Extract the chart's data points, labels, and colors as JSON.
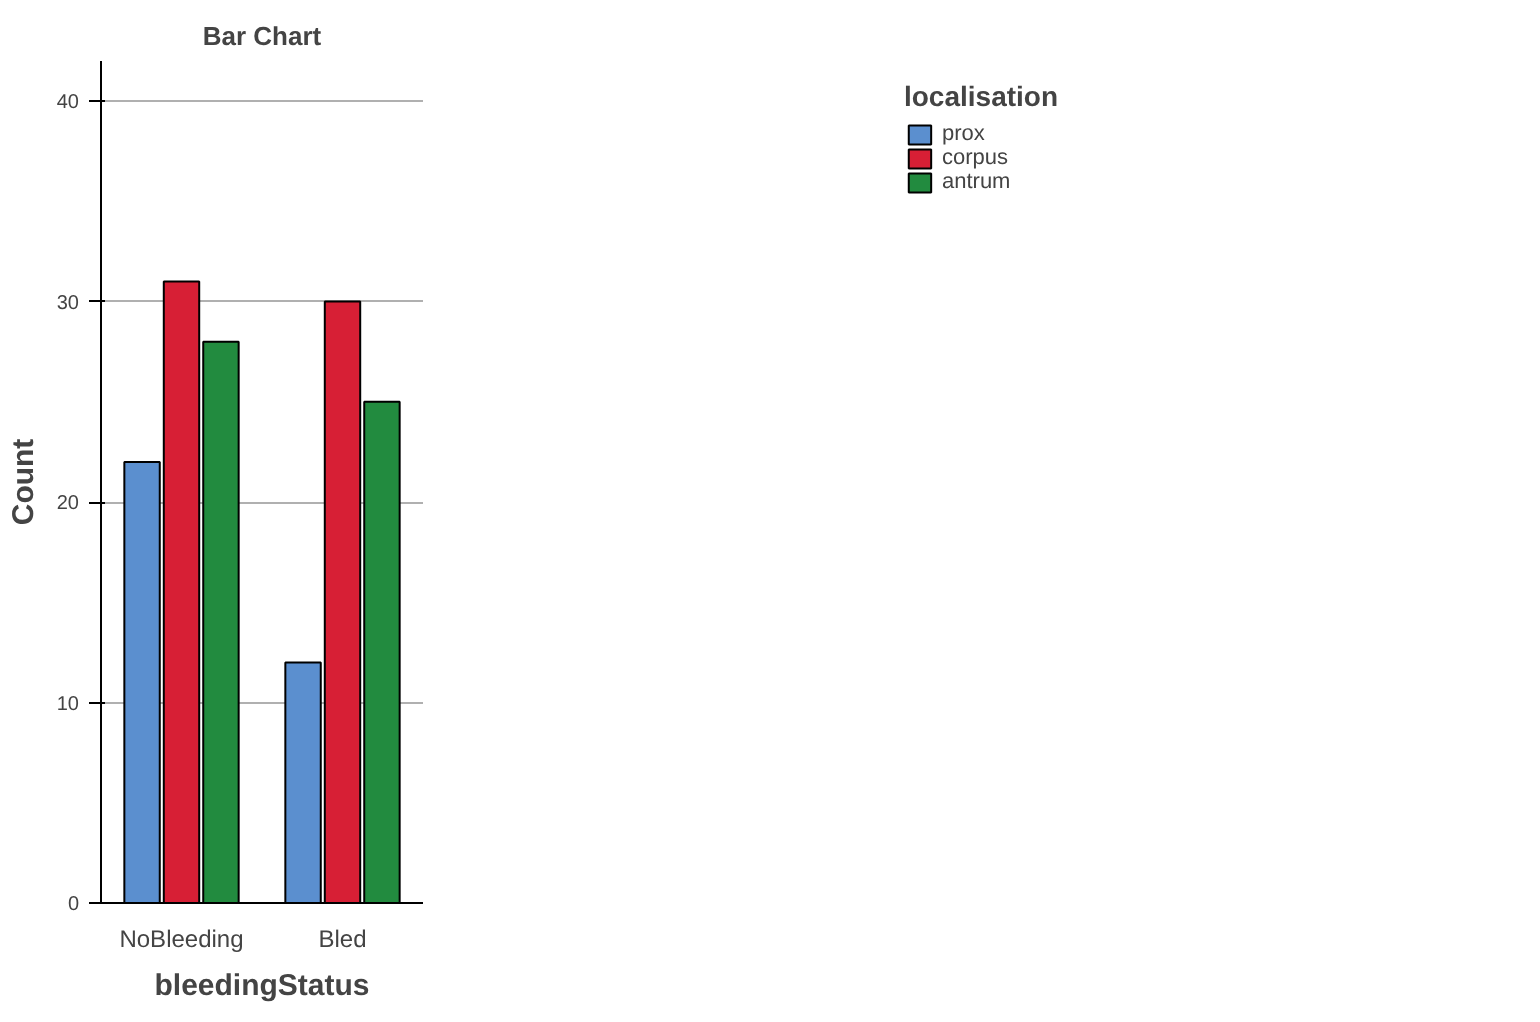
{
  "chart_data": {
    "type": "bar",
    "title": "Bar Chart",
    "xlabel": "bleedingStatus",
    "ylabel": "Count",
    "legend_title": "localisation",
    "categories": [
      "NoBleeding",
      "Bled"
    ],
    "series": [
      {
        "name": "prox",
        "color": "#5b8fcf",
        "values": [
          22,
          12
        ]
      },
      {
        "name": "corpus",
        "color": "#d71f35",
        "values": [
          31,
          30
        ]
      },
      {
        "name": "antrum",
        "color": "#228b3f",
        "values": [
          28,
          25
        ]
      }
    ],
    "ylim": [
      0,
      42
    ],
    "yticks": [
      0,
      10,
      20,
      30,
      40
    ],
    "grid": "y",
    "legend": "top right"
  }
}
